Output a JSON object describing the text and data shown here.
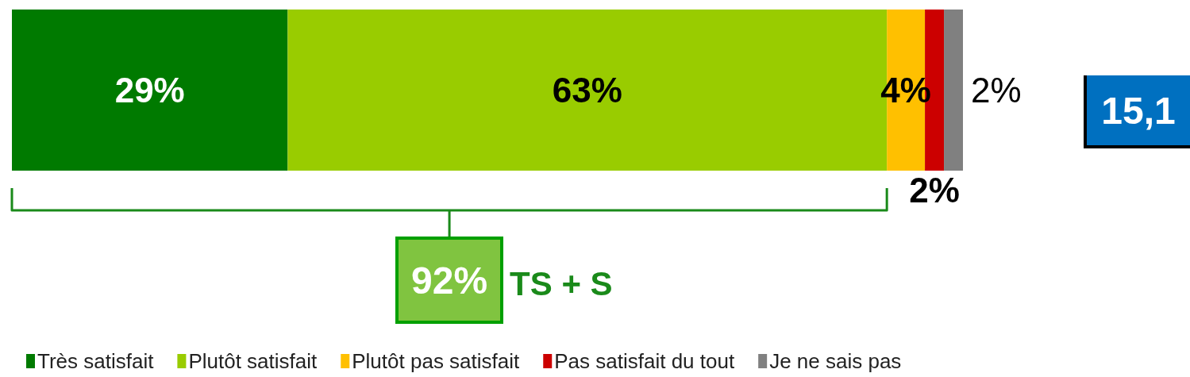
{
  "chart_data": {
    "type": "bar",
    "orientation": "horizontal",
    "stacked": true,
    "categories": [
      null
    ],
    "series": [
      {
        "name": "Très satisfait",
        "color": "#007a00",
        "values": [
          29
        ],
        "value_labels": [
          "29%"
        ]
      },
      {
        "name": "Plutôt satisfait",
        "color": "#99cc00",
        "values": [
          63
        ],
        "value_labels": [
          "63%"
        ]
      },
      {
        "name": "Plutôt pas satisfait",
        "color": "#ffc000",
        "values": [
          4
        ],
        "value_labels": [
          "4%"
        ]
      },
      {
        "name": "Pas satisfait du tout",
        "color": "#cc0000",
        "values": [
          2
        ],
        "value_labels": [
          "2%"
        ]
      },
      {
        "name": "Je ne sais pas",
        "color": "#808080",
        "values": [
          2
        ],
        "value_labels": [
          "2%"
        ]
      }
    ],
    "annotations": [
      "92%",
      "TS + S",
      "15,1"
    ],
    "legend": "bottom",
    "grid": false,
    "tick_labels": false
  }
}
